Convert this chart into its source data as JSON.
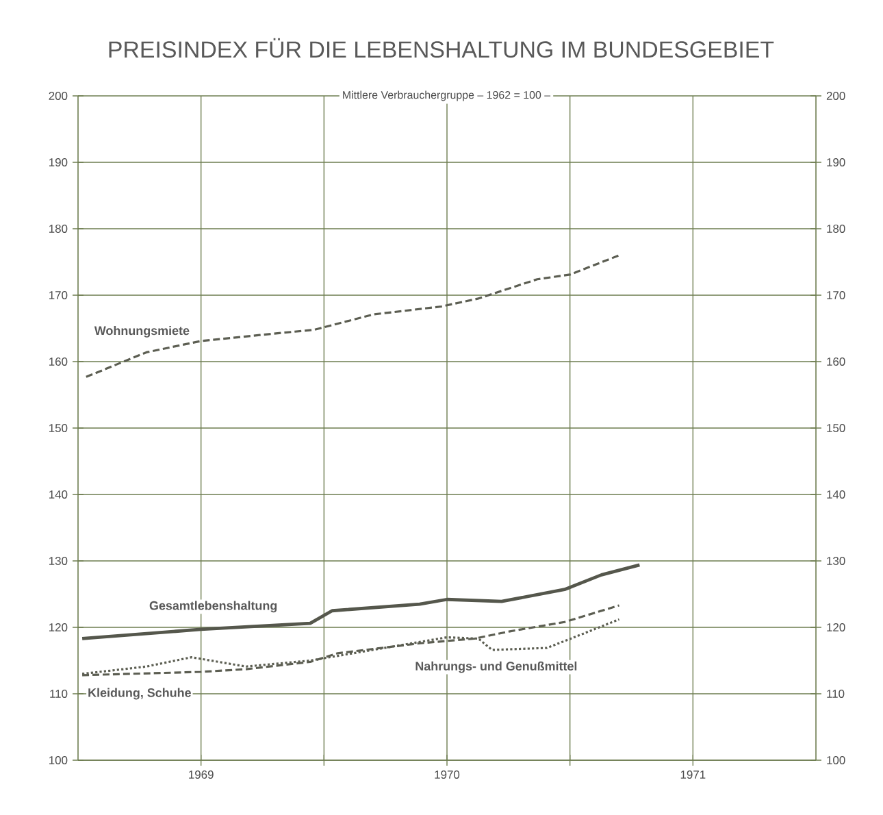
{
  "chart_data": {
    "type": "line",
    "title": "PREISINDEX FÜR DIE LEBENSHALTUNG IM BUNDESGEBIET",
    "subtitle": "Mittlere Verbrauchergruppe – 1962 = 100 –",
    "series": [
      {
        "name": "Wohnungsmiete",
        "color": "#5c5e52",
        "line_style": "dashed",
        "x": [
          1969.033,
          1969.278,
          1969.5,
          1969.739,
          1969.961,
          1970.2,
          1970.478,
          1970.628,
          1970.867,
          1971.0,
          1971.2
        ],
        "values": [
          157.7,
          161.4,
          163.1,
          164.0,
          164.8,
          167.1,
          168.3,
          169.5,
          172.4,
          173.1,
          176.0
        ]
      },
      {
        "name": "Gesamtlebenshaltung",
        "color": "#55574c",
        "line_style": "solid",
        "x": [
          1969.017,
          1969.5,
          1969.944,
          1970.033,
          1970.389,
          1970.5,
          1970.722,
          1970.978,
          1971.128,
          1971.283
        ],
        "values": [
          118.3,
          119.7,
          120.6,
          122.5,
          123.5,
          124.2,
          123.9,
          125.7,
          127.9,
          129.4
        ]
      },
      {
        "name": "Kleidung, Schuhe",
        "color": "#5c5e52",
        "line_style": "dashed",
        "x": [
          1969.017,
          1969.5,
          1969.683,
          1969.944,
          1970.056,
          1970.389,
          1970.611,
          1970.756,
          1970.978,
          1971.2
        ],
        "values": [
          112.8,
          113.3,
          113.7,
          114.8,
          116.1,
          117.6,
          118.3,
          119.4,
          120.8,
          123.3
        ]
      },
      {
        "name": "Nahrungs- und Genußmittel",
        "color": "#5c5e52",
        "line_style": "dotted",
        "x": [
          1969.017,
          1969.278,
          1969.461,
          1969.683,
          1969.944,
          1970.389,
          1970.5,
          1970.628,
          1970.683,
          1970.906,
          1971.017,
          1971.2
        ],
        "values": [
          113.0,
          114.1,
          115.5,
          114.1,
          115.0,
          117.8,
          118.5,
          118.3,
          116.6,
          116.9,
          118.5,
          121.2
        ]
      }
    ],
    "xlim": [
      1969,
      1972
    ],
    "xticks": [
      {
        "value": 1969.5,
        "label": "1969"
      },
      {
        "value": 1970,
        "label": null
      },
      {
        "value": 1970.5,
        "label": "1970"
      },
      {
        "value": 1971,
        "label": null
      },
      {
        "value": 1971.5,
        "label": "1971"
      }
    ],
    "ylim": [
      100,
      200
    ],
    "yticks": [
      100,
      110,
      120,
      130,
      140,
      150,
      160,
      170,
      180,
      190,
      200
    ],
    "y2lim": [
      100,
      200
    ],
    "y2ticks": [
      100,
      110,
      120,
      130,
      140,
      150,
      160,
      170,
      180,
      190,
      200
    ],
    "grid": true
  }
}
